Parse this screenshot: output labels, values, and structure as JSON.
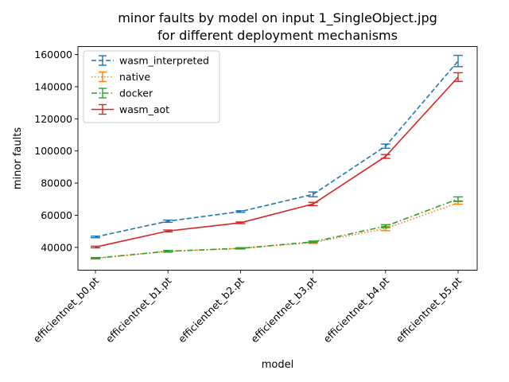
{
  "chart_data": {
    "type": "line",
    "title": "minor faults by model on input 1_SingleObject.jpg",
    "subtitle": "for different deployment mechanisms",
    "xlabel": "model",
    "ylabel": "minor faults",
    "categories": [
      "efficientnet_b0.pt",
      "efficientnet_b1.pt",
      "efficientnet_b2.pt",
      "efficientnet_b3.pt",
      "efficientnet_b4.pt",
      "efficientnet_b5.pt"
    ],
    "ylim": [
      25800,
      165000
    ],
    "yticks": [
      40000,
      60000,
      80000,
      100000,
      120000,
      140000,
      160000
    ],
    "ytick_labels": [
      "40000",
      "60000",
      "80000",
      "100000",
      "120000",
      "140000",
      "160000"
    ],
    "grid": false,
    "legend_position": "top-left",
    "series": [
      {
        "name": "wasm_interpreted",
        "color": "#1f77b4",
        "dash": "dashed",
        "values": [
          46500,
          56300,
          62300,
          73000,
          103000,
          156000
        ],
        "errors": [
          500,
          700,
          500,
          1500,
          1300,
          3500
        ]
      },
      {
        "name": "native",
        "color": "#ff7f0e",
        "dash": "dotted",
        "values": [
          33200,
          37500,
          39400,
          43000,
          51700,
          67700
        ],
        "errors": [
          400,
          500,
          400,
          500,
          1300,
          800
        ]
      },
      {
        "name": "docker",
        "color": "#2ca02c",
        "dash": "dashdot",
        "values": [
          33300,
          37600,
          39400,
          43400,
          53200,
          70100
        ],
        "errors": [
          400,
          500,
          400,
          500,
          900,
          1300
        ]
      },
      {
        "name": "wasm_aot",
        "color": "#d62728",
        "dash": "solid",
        "values": [
          40200,
          50200,
          55300,
          67000,
          96600,
          146000
        ],
        "errors": [
          500,
          600,
          500,
          1000,
          1200,
          2700
        ]
      }
    ]
  }
}
